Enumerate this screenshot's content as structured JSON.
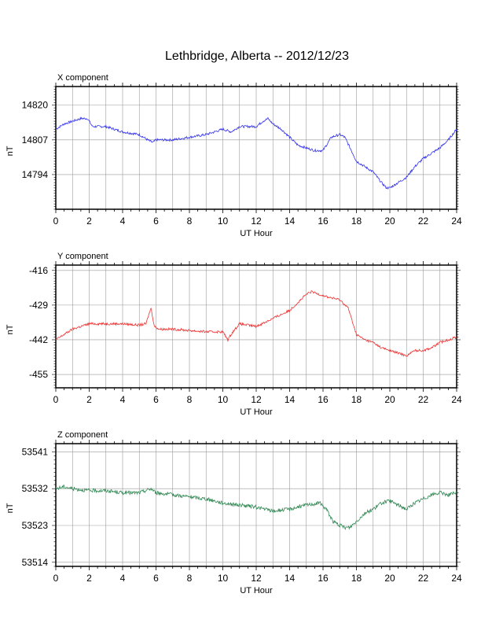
{
  "page_title": "Lethbridge, Alberta -- 2012/12/23",
  "chart_data": [
    {
      "type": "line",
      "title": "X component",
      "xlabel": "UT Hour",
      "ylabel": "nT",
      "xlim": [
        0,
        24
      ],
      "ylim": [
        14781,
        14827
      ],
      "xticks": [
        0,
        2,
        4,
        6,
        8,
        10,
        12,
        14,
        16,
        18,
        20,
        22,
        24
      ],
      "yticks": [
        14794,
        14807,
        14820
      ],
      "grid": true,
      "series": [
        {
          "color": "#3333ee",
          "x": [
            0,
            0.5,
            1,
            1.5,
            1.9,
            2.2,
            3,
            4,
            5,
            5.5,
            5.8,
            6,
            7,
            8,
            9,
            10,
            10.5,
            11,
            12,
            12.4,
            12.7,
            13,
            13.5,
            14,
            14.5,
            15,
            15.5,
            16,
            16.5,
            17,
            17.3,
            17.7,
            18,
            18.5,
            19,
            19.5,
            19.8,
            20,
            20.5,
            21,
            21.5,
            22,
            22.5,
            23,
            23.5,
            24
          ],
          "y": [
            14811,
            14813,
            14814,
            14815,
            14815,
            14812,
            14812,
            14810,
            14809,
            14807,
            14806,
            14807,
            14807,
            14808,
            14809,
            14811,
            14810,
            14812,
            14812,
            14814,
            14815,
            14813,
            14811,
            14808,
            14805,
            14804,
            14803,
            14803,
            14808,
            14809,
            14808,
            14803,
            14799,
            14797,
            14795,
            14791,
            14789,
            14789,
            14791,
            14793,
            14797,
            14800,
            14802,
            14804,
            14807,
            14811
          ]
        }
      ]
    },
    {
      "type": "line",
      "title": "Y component",
      "xlabel": "UT Hour",
      "ylabel": "nT",
      "xlim": [
        0,
        24
      ],
      "ylim": [
        -460,
        -414
      ],
      "xticks": [
        0,
        2,
        4,
        6,
        8,
        10,
        12,
        14,
        16,
        18,
        20,
        22,
        24
      ],
      "yticks": [
        -416,
        -429,
        -442,
        -455
      ],
      "grid": true,
      "series": [
        {
          "color": "#ee3333",
          "x": [
            0,
            0.5,
            1,
            2,
            3,
            4,
            5,
            5.4,
            5.7,
            5.9,
            6.2,
            7,
            8,
            9,
            10,
            10.3,
            10.6,
            11,
            12,
            13,
            14,
            14.5,
            15,
            15.3,
            15.8,
            16.3,
            17,
            17.5,
            18,
            18.5,
            19,
            19.5,
            20,
            20.5,
            21,
            21.5,
            22,
            22.5,
            23,
            23.5,
            24
          ],
          "y": [
            -442,
            -440,
            -438,
            -436,
            -436,
            -436,
            -436.5,
            -436,
            -430,
            -437,
            -438,
            -438,
            -438.5,
            -439,
            -439,
            -442,
            -439,
            -436,
            -437,
            -434,
            -431,
            -428,
            -425,
            -424,
            -425,
            -426,
            -427,
            -430,
            -440,
            -442,
            -443,
            -445,
            -446,
            -447,
            -448,
            -446,
            -446,
            -445,
            -443,
            -442,
            -441
          ]
        }
      ]
    },
    {
      "type": "line",
      "title": "Z component",
      "xlabel": "UT Hour",
      "ylabel": "nT",
      "xlim": [
        0,
        24
      ],
      "ylim": [
        53513,
        53543
      ],
      "xticks": [
        0,
        2,
        4,
        6,
        8,
        10,
        12,
        14,
        16,
        18,
        20,
        22,
        24
      ],
      "yticks": [
        53514,
        53523,
        53532,
        53541
      ],
      "grid": true,
      "series": [
        {
          "color": "#338855",
          "x": [
            0,
            0.5,
            1,
            2,
            3,
            4,
            5,
            5.7,
            6,
            7,
            8,
            9,
            10,
            11,
            12,
            13,
            14,
            15,
            15.8,
            16.2,
            16.6,
            17,
            17.3,
            17.6,
            18,
            18.5,
            19,
            19.5,
            20,
            20.5,
            21,
            21.5,
            22,
            22.5,
            23,
            23.5,
            24
          ],
          "y": [
            53532,
            53532.5,
            53532,
            53531.5,
            53531.5,
            53531,
            53531,
            53532,
            53531,
            53530.5,
            53530,
            53529.5,
            53528.5,
            53528,
            53527.5,
            53526.5,
            53527,
            53528,
            53528.5,
            53527,
            53524,
            53523,
            53522.5,
            53522.5,
            53524,
            53526,
            53527,
            53528.5,
            53529,
            53528,
            53527,
            53528.5,
            53529.5,
            53530.5,
            53531,
            53530.5,
            53531
          ]
        }
      ]
    }
  ]
}
